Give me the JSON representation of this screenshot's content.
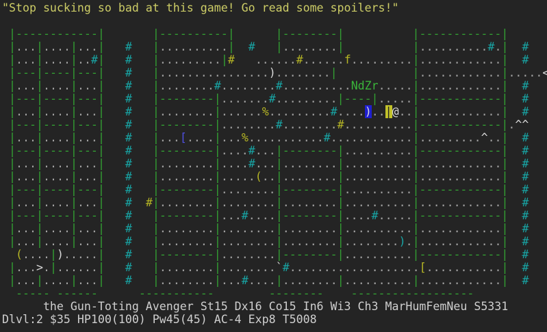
{
  "message": "\"Stop sucking so bad at this game! Go read some spoilers!\"",
  "status": {
    "line1": "      the Gun-Toting Avenger St15 Dx16 Co15 In6 Wi3 Ch3 MarHumFemNeu S5331",
    "line2": "Dlvl:2 $35 HP100(100) Pw45(45) AC-4 Exp8 T5008",
    "parsed": {
      "rank": "the Gun-Toting Avenger",
      "strength": "St15",
      "dexterity": "Dx16",
      "constitution": "Co15",
      "intelligence": "In6",
      "wisdom": "Wi3",
      "charisma": "Ch3",
      "identity": "MarHumFemNeu",
      "score": "S5331",
      "dungeon_level": "Dlvl:2",
      "gold": "$35",
      "hp": "HP100(100)",
      "power": "Pw45(45)",
      "armor_class": "AC-4",
      "experience": "Exp8",
      "turn": "T5008"
    }
  },
  "palette": {
    "background": "#242424",
    "wall": "#33a033",
    "floor": "#a3a3a3",
    "corridor": "#18a5a5",
    "yellow": "#b5b524",
    "white": "#d8d8d8",
    "monster_green": "#3ab53a",
    "blue": "#4f4fe0",
    "cyan": "#18a5a5",
    "inverse_blue_bg": "#1f1fd0",
    "inverse_yellow_bg": "#c2c22a",
    "message": "#cccc66",
    "status": "#cfcfcf"
  },
  "map": {
    "rows": [
      " |------------|       |----------|      |--------|          |------------|      ",
      " |...|....|...|   #   |..........|  #   |........|          |..........#.|  #   ",
      " |...|....|..#|   #   |.........|#   ......#......f.........|............|  #   ",
      " |---|----|---|   #   |................)........|           |............|.....<",
      " |...|....|...|   #   |........#........#..........NdZr.....|............|  #   ",
      " |---|----|---|   #   |--------|.......#.........|----|.....|------------|  #   ",
      " |...|....|...|   #   |........|......%.........#....)..|@..|............|  #   ",
      " |---|----|---|   #   |--------|........#........#..........|------------|.^^   ",
      " |...|....|...|   #   |...[....|...%...........#............|.........^..|  #   ",
      " |---|----|---|   #   |--------|....#...|--------|..........|------------|  #   ",
      " |...|....|...|   #   |........|....#...|........|..........|............|  #   ",
      " |...|....|...|   #   |........|.....(..|........|..........|............|  #   ",
      " |---|----|---|   #   |--------|........|--------|..........|------------|  #   ",
      " |...|....|...|   #  #|........|........|........|..........|............|  #   ",
      " |---|----|---|   #   |--------|...#....|--------|....#.....|------------|  #   ",
      " |...|....|...|   #   |........|........|........|..........|............|  #   ",
      " |...|....|...|   #   |........|........|........|........).|............|  #   ",
      "  (....|).....|   #   |--------|........|--------|..........|------------|  #   ",
      " |...>.|......|   #   |........|........`#...................[...........|  #   ",
      " |...|....|...|   #   |........|...#....|........|..........|............|  #   ",
      "  ----- ------      -----------        --------    ------------------           "
    ],
    "overrides": [
      {
        "row": 2,
        "col": 33,
        "text": "#",
        "color": "yellow",
        "name": "corridor-lit"
      },
      {
        "row": 2,
        "col": 43,
        "text": "#",
        "color": "yellow",
        "name": "corridor-lit"
      },
      {
        "row": 2,
        "col": 50,
        "text": "f",
        "color": "yellow",
        "name": "monster-feline"
      },
      {
        "row": 3,
        "col": 39,
        "text": ")",
        "color": "white",
        "name": "item-weapon"
      },
      {
        "row": 3,
        "col": 79,
        "text": "<",
        "color": "white",
        "name": "stairs-up"
      },
      {
        "row": 4,
        "col": 51,
        "text": "NdZr",
        "color": "monster_green",
        "name": "monster-group"
      },
      {
        "row": 6,
        "col": 38,
        "text": "%",
        "color": "yellow",
        "name": "item-food"
      },
      {
        "row": 6,
        "col": 53,
        "text": ")",
        "color": "white",
        "bg": "inverse_blue_bg",
        "name": "item-weapon-highlighted"
      },
      {
        "row": 6,
        "col": 56,
        "text": "|",
        "color": "background",
        "bg": "inverse_yellow_bg",
        "name": "door-highlighted"
      },
      {
        "row": 6,
        "col": 57,
        "text": "@",
        "color": "white",
        "name": "player"
      },
      {
        "row": 7,
        "col": 49,
        "text": "#",
        "color": "yellow",
        "name": "corridor-lit"
      },
      {
        "row": 7,
        "col": 75,
        "text": "^^",
        "color": "white",
        "name": "traps"
      },
      {
        "row": 8,
        "col": 26,
        "text": "[",
        "color": "blue",
        "name": "item-armor"
      },
      {
        "row": 8,
        "col": 35,
        "text": "%",
        "color": "yellow",
        "name": "item-food"
      },
      {
        "row": 8,
        "col": 70,
        "text": "^",
        "color": "white",
        "name": "trap"
      },
      {
        "row": 11,
        "col": 37,
        "text": "(",
        "color": "yellow",
        "name": "item-tool"
      },
      {
        "row": 13,
        "col": 21,
        "text": "#",
        "color": "yellow",
        "name": "corridor-lit"
      },
      {
        "row": 16,
        "col": 58,
        "text": ")",
        "color": "cyan",
        "name": "item-weapon"
      },
      {
        "row": 17,
        "col": 2,
        "text": "(",
        "color": "yellow",
        "name": "item-tool"
      },
      {
        "row": 17,
        "col": 8,
        "text": ")",
        "color": "white",
        "name": "item-weapon"
      },
      {
        "row": 18,
        "col": 5,
        "text": ">",
        "color": "white",
        "name": "stairs-down"
      },
      {
        "row": 18,
        "col": 40,
        "text": "`",
        "color": "white",
        "name": "rock"
      },
      {
        "row": 18,
        "col": 61,
        "text": "[",
        "color": "yellow",
        "name": "item-armor"
      }
    ]
  }
}
